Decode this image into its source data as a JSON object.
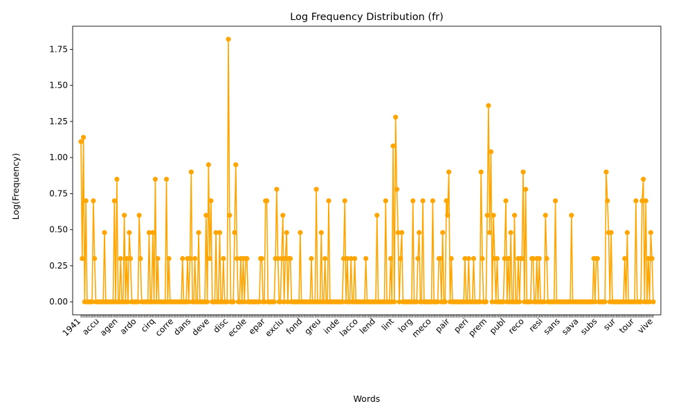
{
  "chart_data": {
    "type": "line",
    "title": "Log Frequency Distribution (fr)",
    "xlabel": "Words",
    "ylabel": "Log(Frequency)",
    "ylim": [
      -0.09,
      1.91
    ],
    "yticks": [
      0.0,
      0.25,
      0.5,
      0.75,
      1.0,
      1.25,
      1.5,
      1.75
    ],
    "ytick_labels": [
      "0.00",
      "0.25",
      "0.50",
      "0.75",
      "1.00",
      "1.25",
      "1.50",
      "1.75"
    ],
    "grid": false,
    "legend": "none",
    "series_color": "#ffa500",
    "marker": "circle",
    "visible_tick_labels": [
      "1941",
      "accu",
      "agen",
      "ardo",
      "cirq",
      "corre",
      "dans",
      "deve",
      "disc",
      "ecole",
      "epar",
      "exclu",
      "fond",
      "greu",
      "inde",
      "lacco",
      "lend",
      "lint",
      "lorg",
      "meco",
      "pair",
      "peri",
      "prem",
      "publ",
      "reco",
      "resi",
      "sans",
      "sava",
      "subs",
      "sur",
      "tour",
      "vive"
    ],
    "series": [
      {
        "values": [
          1.11,
          0.3,
          1.14,
          0,
          0.7,
          0,
          0,
          0,
          0,
          0,
          0.7,
          0.3,
          0,
          0,
          0,
          0,
          0,
          0,
          0,
          0.48,
          0,
          0,
          0,
          0,
          0,
          0,
          0,
          0.7,
          0,
          0.85,
          0,
          0,
          0.3,
          0,
          0,
          0.6,
          0,
          0.3,
          0,
          0.48,
          0.3,
          0,
          0,
          0,
          0,
          0,
          0,
          0.6,
          0.3,
          0,
          0,
          0,
          0,
          0,
          0,
          0.48,
          0,
          0,
          0.48,
          0,
          0.85,
          0,
          0.3,
          0,
          0,
          0,
          0,
          0,
          0,
          0.85,
          0,
          0.3,
          0,
          0,
          0,
          0,
          0,
          0,
          0,
          0,
          0,
          0,
          0.3,
          0,
          0,
          0,
          0.3,
          0,
          0.3,
          0.9,
          0,
          0,
          0.3,
          0,
          0,
          0.48,
          0,
          0,
          0,
          0,
          0,
          0.6,
          0,
          0.95,
          0.3,
          0.7,
          0,
          0,
          0,
          0.48,
          0,
          0,
          0.48,
          0,
          0,
          0.3,
          0,
          0,
          0,
          1.82,
          0.6,
          0,
          0,
          0,
          0.48,
          0.95,
          0.3,
          0,
          0,
          0.3,
          0,
          0.3,
          0,
          0.3,
          0.3,
          0,
          0,
          0,
          0,
          0,
          0,
          0,
          0,
          0,
          0,
          0.3,
          0.3,
          0,
          0,
          0.7,
          0.7,
          0,
          0,
          0,
          0,
          0,
          0,
          0.3,
          0.78,
          0.3,
          0,
          0,
          0.3,
          0.6,
          0,
          0.3,
          0.48,
          0,
          0.3,
          0.3,
          0,
          0,
          0,
          0,
          0,
          0,
          0,
          0.48,
          0,
          0,
          0,
          0,
          0,
          0,
          0,
          0,
          0.3,
          0,
          0,
          0,
          0.78,
          0,
          0,
          0,
          0.48,
          0,
          0,
          0.3,
          0,
          0,
          0.7,
          0,
          0,
          0,
          0,
          0,
          0,
          0,
          0,
          0,
          0,
          0,
          0.3,
          0.7,
          0,
          0.3,
          0,
          0,
          0.3,
          0,
          0,
          0.3,
          0,
          0,
          0,
          0,
          0,
          0,
          0,
          0,
          0.3,
          0,
          0,
          0,
          0,
          0,
          0,
          0,
          0,
          0.6,
          0,
          0,
          0,
          0,
          0,
          0,
          0.7,
          0,
          0,
          0,
          0.3,
          0,
          1.08,
          0,
          1.28,
          0.78,
          0.48,
          0,
          0.3,
          0.48,
          0,
          0,
          0,
          0,
          0,
          0,
          0,
          0,
          0.7,
          0,
          0,
          0,
          0.3,
          0.48,
          0,
          0,
          0.7,
          0,
          0,
          0,
          0,
          0,
          0,
          0,
          0.7,
          0,
          0,
          0,
          0,
          0.3,
          0.3,
          0,
          0.48,
          0,
          0,
          0.7,
          0.6,
          0.9,
          0,
          0.3,
          0,
          0,
          0,
          0,
          0,
          0,
          0,
          0,
          0,
          0,
          0.3,
          0,
          0,
          0.3,
          0,
          0,
          0,
          0.3,
          0,
          0,
          0,
          0,
          0,
          0.9,
          0.3,
          0,
          0,
          0,
          0.6,
          1.36,
          0.48,
          1.04,
          0,
          0.6,
          0.3,
          0,
          0.3,
          0,
          0,
          0,
          0,
          0,
          0.3,
          0.7,
          0,
          0.3,
          0,
          0.48,
          0,
          0,
          0.6,
          0,
          0,
          0.3,
          0,
          0.3,
          0.3,
          0.9,
          0,
          0.78,
          0,
          0,
          0,
          0,
          0.3,
          0.3,
          0,
          0,
          0.3,
          0,
          0.3,
          0,
          0,
          0,
          0,
          0.6,
          0.3,
          0,
          0,
          0,
          0,
          0,
          0,
          0.7,
          0,
          0,
          0,
          0,
          0,
          0,
          0,
          0,
          0,
          0,
          0,
          0,
          0.6,
          0,
          0,
          0,
          0,
          0,
          0,
          0,
          0,
          0,
          0,
          0,
          0,
          0,
          0,
          0,
          0,
          0,
          0.3,
          0,
          0.3,
          0.3,
          0,
          0,
          0,
          0,
          0,
          0,
          0.9,
          0.7,
          0.48,
          0,
          0.48,
          0,
          0,
          0,
          0,
          0,
          0,
          0,
          0,
          0,
          0,
          0.3,
          0,
          0.48,
          0,
          0,
          0,
          0,
          0,
          0,
          0.7,
          0,
          0,
          0,
          0,
          0.7,
          0.85,
          0,
          0.7,
          0,
          0.3,
          0,
          0.48,
          0.3,
          0
        ]
      }
    ]
  }
}
